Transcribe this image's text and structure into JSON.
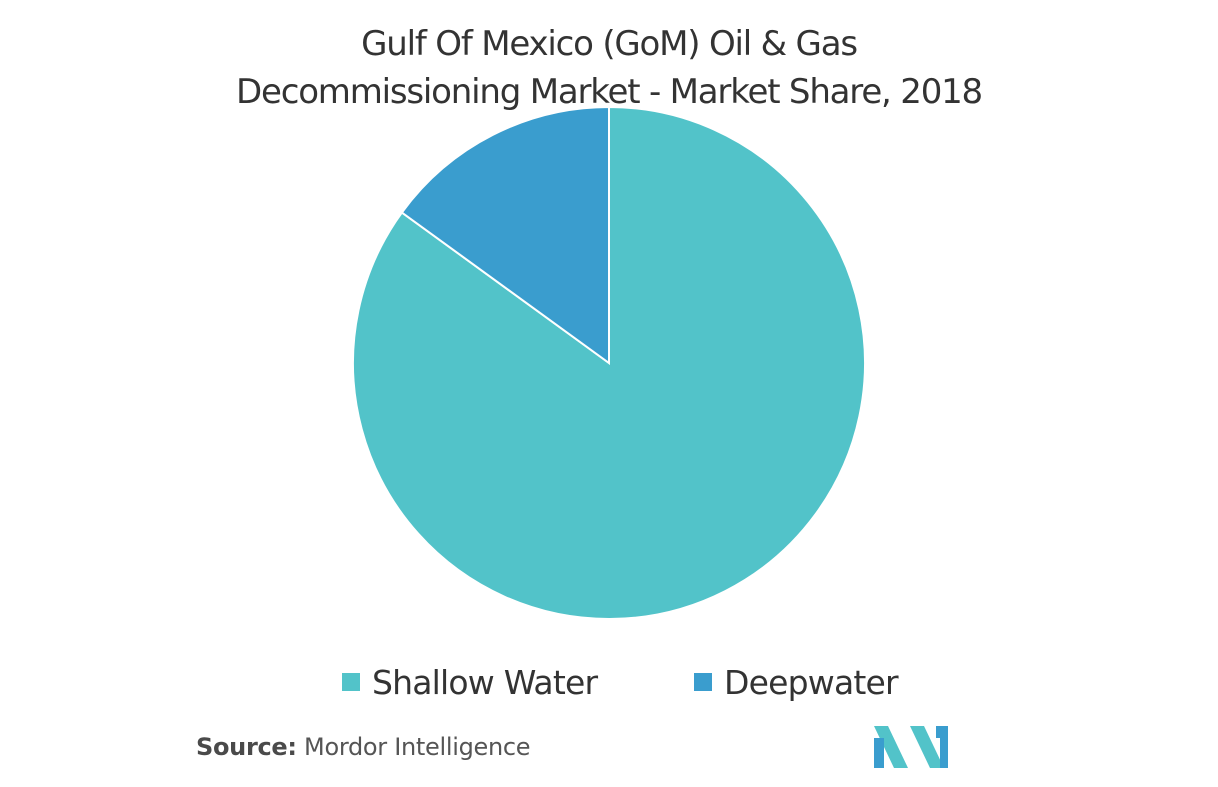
{
  "chart_data": {
    "type": "pie",
    "title": "Gulf Of Mexico (GoM) Oil & Gas Decommissioning Market - Market Share, 2018",
    "title_lines": [
      "Gulf Of Mexico (GoM) Oil & Gas",
      "Decommissioning Market - Market Share, 2018"
    ],
    "categories": [
      "Shallow Water",
      "Deepwater"
    ],
    "values": [
      85,
      15
    ],
    "colors": [
      "#52C3C9",
      "#3A9DCE"
    ],
    "legend_position": "bottom"
  },
  "source": {
    "label": "Source:",
    "text": "Mordor Intelligence"
  },
  "logo": {
    "icon": "mordor-intelligence-logo",
    "colors": [
      "#52C3C9",
      "#3A9DCE"
    ]
  }
}
